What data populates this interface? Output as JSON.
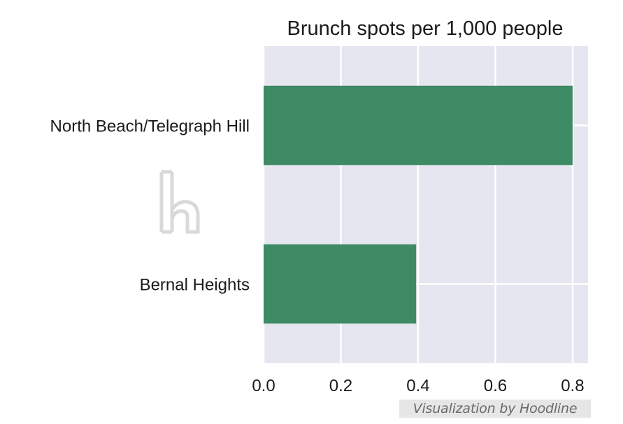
{
  "chart_data": {
    "type": "bar",
    "orientation": "horizontal",
    "title": "Brunch spots per 1,000 people",
    "xlabel": "",
    "ylabel": "",
    "categories": [
      "North Beach/Telegraph Hill",
      "Bernal Heights"
    ],
    "values": [
      0.8,
      0.395
    ],
    "xlim": [
      0,
      0.84
    ],
    "xticks": [
      "0.0",
      "0.2",
      "0.4",
      "0.6",
      "0.8"
    ],
    "grid": true,
    "legend": "none",
    "colors": {
      "bar": "#3d8a64",
      "plot_background": "#e6e6f0",
      "grid": "#ffffff"
    }
  },
  "credit": "Visualization by Hoodline",
  "watermark_icon": "hoodline-h-logo-icon"
}
